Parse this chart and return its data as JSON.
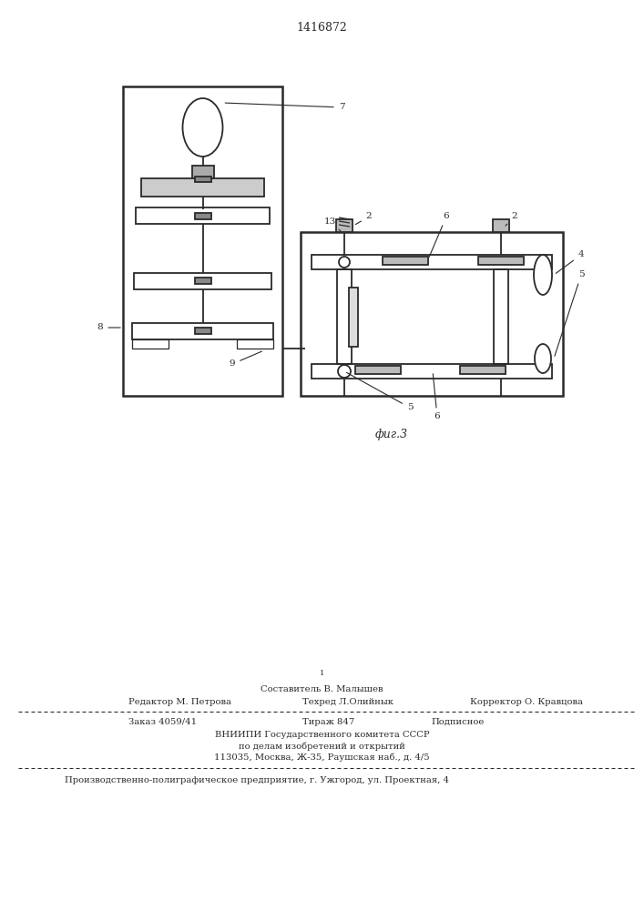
{
  "patent_number": "1416872",
  "fig_label": "фиг.3",
  "bg_color": "#ffffff",
  "line_color": "#2a2a2a",
  "footer": {
    "page_mark": "1",
    "sestavitel": "Составитель В. Малышев",
    "editor": "Редактор М. Петрова",
    "techred": "Техред Л.Олийнык",
    "corrector": "Корректор О. Кравцова",
    "order": "Заказ 4059/41",
    "tirazh": "Тираж 847",
    "podpisnoe": "Подписное",
    "vniip1": "ВНИИПИ Государственного комитета СССР",
    "vniip2": "по делам изобретений и открытий",
    "vniip3": "113035, Москва, Ж-35, Раушская наб., д. 4/5",
    "prod": "Производственно-полиграфическое предприятие, г. Ужгород, ул. Проектная, 4"
  }
}
